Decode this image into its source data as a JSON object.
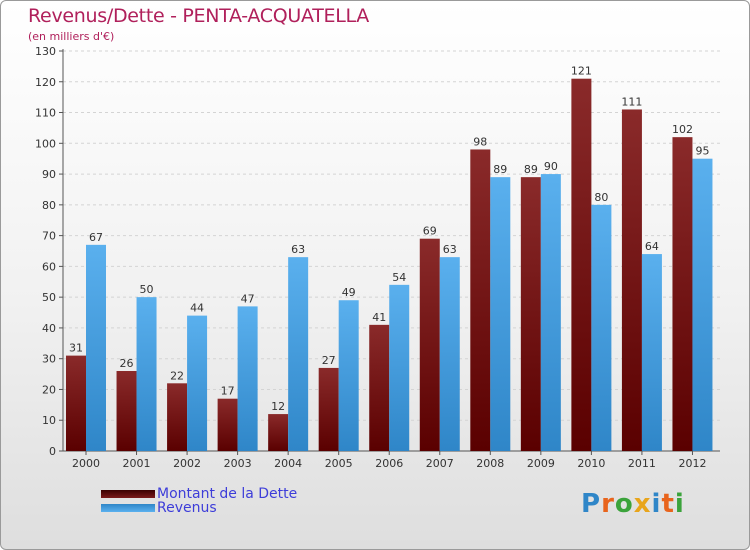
{
  "title": "Revenus/Dette - PENTA-ACQUATELLA",
  "subtitle": "(en milliers d'€)",
  "legend": {
    "debt_label": "Montant de la Dette",
    "revenue_label": "Revenus"
  },
  "logo_text": "Proxiti",
  "colors": {
    "debt": "#7a1a1a",
    "revenue": "#4aa3e3",
    "text": "#333333",
    "title": "#b0205b",
    "legend_text": "#3d3dd9"
  },
  "chart_data": {
    "type": "bar",
    "title": "Revenus/Dette - PENTA-ACQUATELLA",
    "subtitle": "(en milliers d'€)",
    "xlabel": "",
    "ylabel": "",
    "ylim": [
      0,
      130
    ],
    "yticks": [
      0,
      10,
      20,
      30,
      40,
      50,
      60,
      70,
      80,
      90,
      100,
      110,
      120,
      130
    ],
    "grid": true,
    "legend_position": "bottom-left",
    "categories": [
      "2000",
      "2001",
      "2002",
      "2003",
      "2004",
      "2005",
      "2006",
      "2007",
      "2008",
      "2009",
      "2010",
      "2011",
      "2012"
    ],
    "series": [
      {
        "name": "Montant de la Dette",
        "values": [
          31,
          26,
          22,
          17,
          12,
          27,
          41,
          69,
          98,
          89,
          121,
          111,
          102
        ]
      },
      {
        "name": "Revenus",
        "values": [
          67,
          50,
          44,
          47,
          63,
          49,
          54,
          63,
          89,
          90,
          80,
          64,
          95
        ]
      }
    ]
  }
}
